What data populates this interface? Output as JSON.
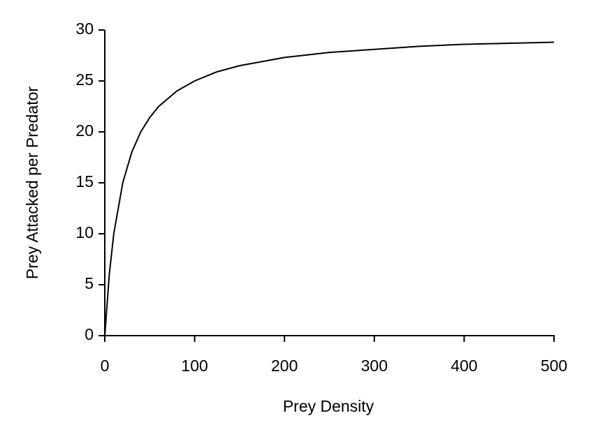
{
  "chart_data": {
    "type": "line",
    "x_label": "Prey Density",
    "y_label": "Prey Attacked per Predator",
    "x": [
      0,
      5,
      10,
      20,
      30,
      40,
      50,
      60,
      80,
      100,
      125,
      150,
      200,
      250,
      300,
      350,
      400,
      450,
      500
    ],
    "values": [
      0,
      6,
      10,
      15,
      18,
      20,
      21.4,
      22.5,
      24,
      25,
      25.9,
      26.5,
      27.3,
      27.8,
      28.1,
      28.4,
      28.6,
      28.7,
      28.8
    ],
    "color": "#000000",
    "xlim": [
      0,
      500
    ],
    "xticks": [
      0,
      100,
      200,
      300,
      400,
      500
    ],
    "ylim": [
      0,
      30
    ],
    "yticks": [
      0,
      5,
      10,
      15,
      20,
      25,
      30
    ],
    "grid": false
  }
}
